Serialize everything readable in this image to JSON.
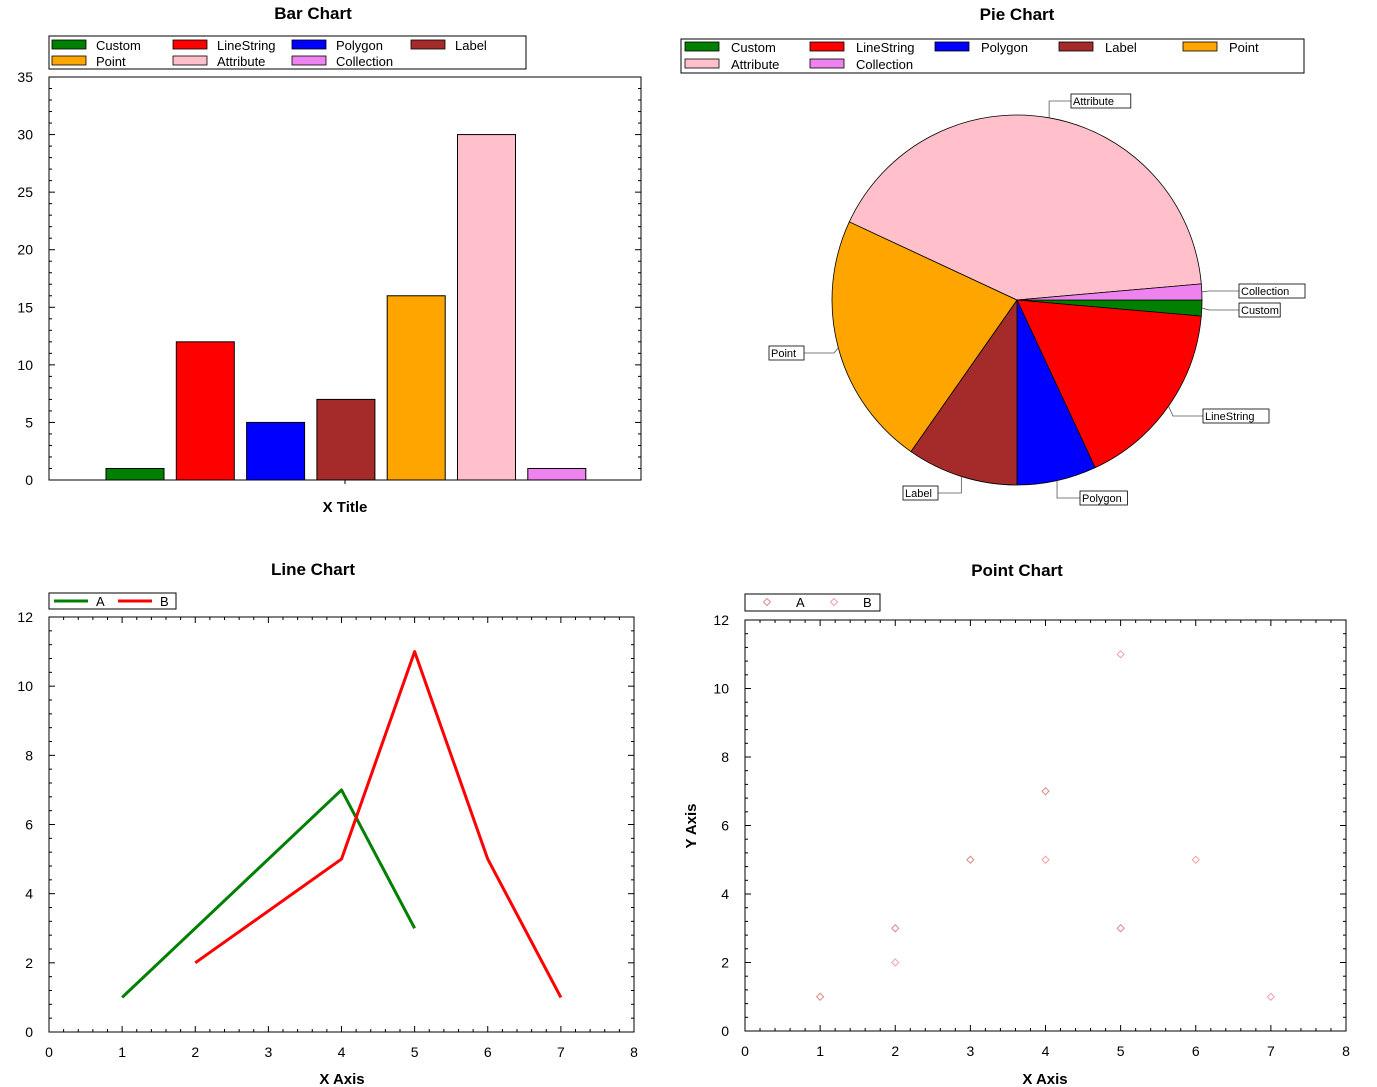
{
  "chart_data": [
    {
      "type": "bar",
      "title": "Bar Chart",
      "xlabel": "X Title",
      "ylabel": "",
      "ylim": [
        0,
        35
      ],
      "yticks": [
        "0",
        "5",
        "10",
        "15",
        "20",
        "25",
        "30",
        "35"
      ],
      "grid": false,
      "legend": "top",
      "categories": [
        "Custom",
        "LineString",
        "Polygon",
        "Label",
        "Point",
        "Attribute",
        "Collection"
      ],
      "values": [
        1,
        12,
        5,
        7,
        16,
        30,
        1
      ],
      "colors": [
        "#008000",
        "#ff0000",
        "#0000ff",
        "#a52a2a",
        "#ffa500",
        "#ffc0cb",
        "#ee82ee"
      ]
    },
    {
      "type": "pie",
      "title": "Pie Chart",
      "legend": "top",
      "categories": [
        "Custom",
        "LineString",
        "Polygon",
        "Label",
        "Point",
        "Attribute",
        "Collection"
      ],
      "values": [
        1,
        12,
        5,
        7,
        16,
        30,
        1
      ],
      "colors": [
        "#008000",
        "#ff0000",
        "#0000ff",
        "#a52a2a",
        "#ffa500",
        "#ffc0cb",
        "#ee82ee"
      ]
    },
    {
      "type": "line",
      "title": "Line Chart",
      "xlabel": "X Axis",
      "ylabel": "",
      "xlim": [
        0,
        8
      ],
      "ylim": [
        0,
        12
      ],
      "xticks": [
        "0",
        "1",
        "2",
        "3",
        "4",
        "5",
        "6",
        "7",
        "8"
      ],
      "yticks": [
        "0",
        "2",
        "4",
        "6",
        "8",
        "10",
        "12"
      ],
      "grid": false,
      "legend": "top-left",
      "series": [
        {
          "name": "A",
          "color": "#008000",
          "x": [
            1,
            4,
            5
          ],
          "y": [
            1,
            7,
            3
          ]
        },
        {
          "name": "B",
          "color": "#ff0000",
          "x": [
            2,
            4,
            5,
            6,
            7
          ],
          "y": [
            2,
            5,
            11,
            5,
            1
          ]
        }
      ]
    },
    {
      "type": "scatter",
      "title": "Point Chart",
      "xlabel": "X Axis",
      "ylabel": "Y Axis",
      "xlim": [
        0,
        8
      ],
      "ylim": [
        0,
        12
      ],
      "xticks": [
        "0",
        "1",
        "2",
        "3",
        "4",
        "5",
        "6",
        "7",
        "8"
      ],
      "yticks": [
        "0",
        "2",
        "4",
        "6",
        "8",
        "10",
        "12"
      ],
      "grid": false,
      "legend": "top-left",
      "series": [
        {
          "name": "A",
          "color": "#d88c8c",
          "x": [
            1,
            2,
            3,
            4,
            5
          ],
          "y": [
            1,
            3,
            5,
            7,
            3
          ]
        },
        {
          "name": "B",
          "color": "#f4a0a8",
          "x": [
            2,
            4,
            5,
            6,
            7
          ],
          "y": [
            2,
            5,
            11,
            5,
            1
          ]
        }
      ]
    }
  ]
}
